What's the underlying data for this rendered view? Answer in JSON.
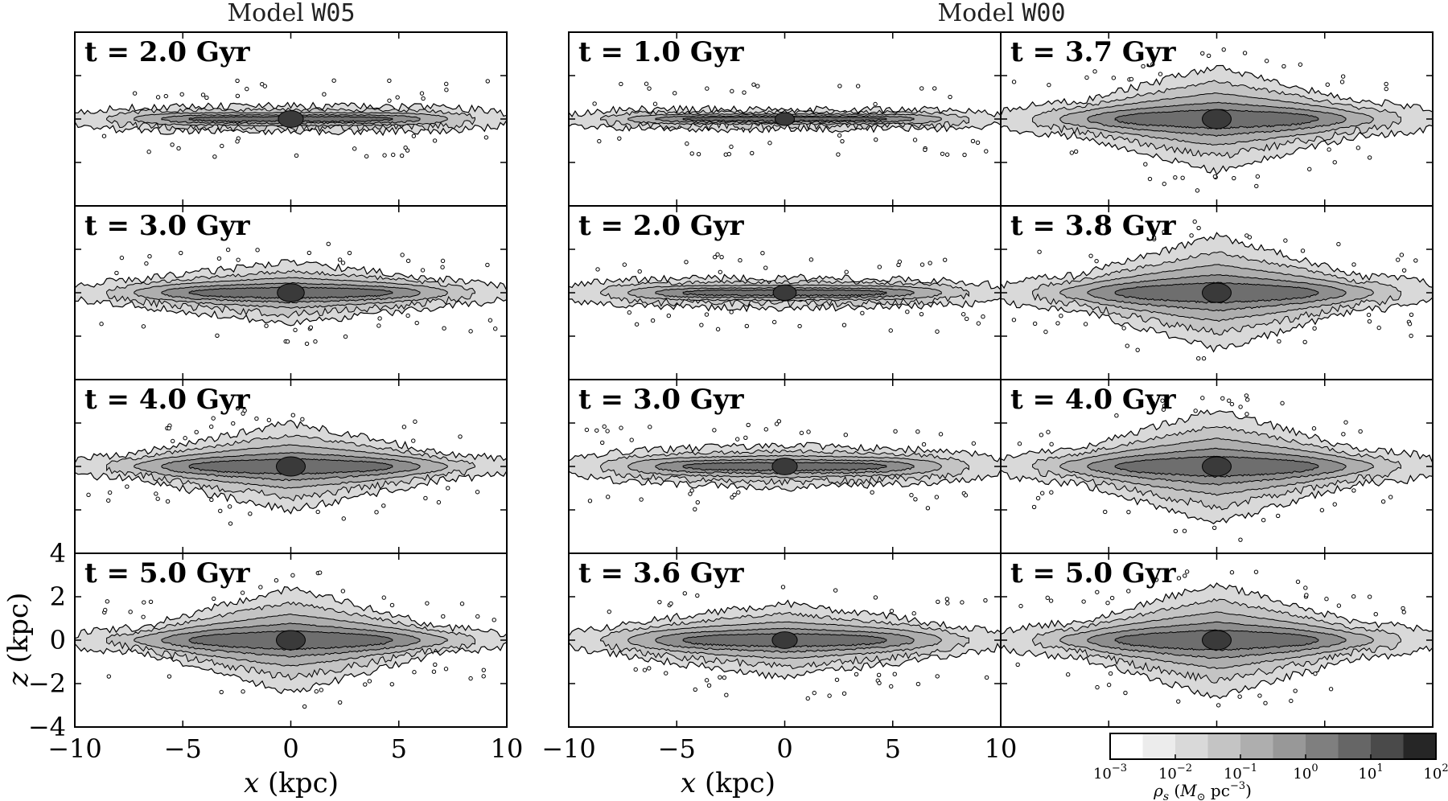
{
  "chart_data": {
    "type": "contour",
    "title_left": {
      "prefix": "Model ",
      "code": "W05"
    },
    "title_right": {
      "prefix": "Model ",
      "code": "W00"
    },
    "xlabel": {
      "var": "x",
      "unit": " (kpc)"
    },
    "ylabel": {
      "var": "z",
      "unit": " (kpc)"
    },
    "xlim": [
      -10,
      10
    ],
    "ylim": [
      -4,
      4
    ],
    "x_ticks": [
      "−10",
      "−5",
      "0",
      "5",
      "10"
    ],
    "y_ticks": [
      "4",
      "2",
      "0",
      "−2",
      "−4"
    ],
    "panels": [
      {
        "model": "W05",
        "column": 0,
        "row": 0,
        "time": "2.0",
        "label": "t = 2.0 Gyr",
        "disk_halfwidth": 9.8,
        "disk_thickness": 0.55,
        "bulge_height": 0.05,
        "bar_halflength": 4.0,
        "core_density": 1.3
      },
      {
        "model": "W05",
        "column": 0,
        "row": 1,
        "time": "3.0",
        "label": "t = 3.0 Gyr",
        "disk_halfwidth": 9.8,
        "disk_thickness": 0.6,
        "bulge_height": 0.8,
        "bar_halflength": 4.5,
        "core_density": 1.4
      },
      {
        "model": "W05",
        "column": 0,
        "row": 2,
        "time": "4.0",
        "label": "t = 4.0 Gyr",
        "disk_halfwidth": 9.8,
        "disk_thickness": 0.6,
        "bulge_height": 1.4,
        "bar_halflength": 4.2,
        "core_density": 1.5
      },
      {
        "model": "W05",
        "column": 0,
        "row": 3,
        "time": "5.0",
        "label": "t = 5.0 Gyr",
        "disk_halfwidth": 9.8,
        "disk_thickness": 0.6,
        "bulge_height": 1.8,
        "bar_halflength": 4.0,
        "core_density": 1.5
      },
      {
        "model": "W00",
        "column": 1,
        "row": 0,
        "time": "1.0",
        "label": "t = 1.0 Gyr",
        "disk_halfwidth": 9.8,
        "disk_thickness": 0.45,
        "bulge_height": 0.0,
        "bar_halflength": 6.0,
        "core_density": 1.0
      },
      {
        "model": "W00",
        "column": 1,
        "row": 1,
        "time": "2.0",
        "label": "t = 2.0 Gyr",
        "disk_halfwidth": 9.8,
        "disk_thickness": 0.6,
        "bulge_height": 0.1,
        "bar_halflength": 5.5,
        "core_density": 1.2
      },
      {
        "model": "W00",
        "column": 1,
        "row": 2,
        "time": "3.0",
        "label": "t = 3.0 Gyr",
        "disk_halfwidth": 9.8,
        "disk_thickness": 0.7,
        "bulge_height": 0.3,
        "bar_halflength": 5.5,
        "core_density": 1.3
      },
      {
        "model": "W00",
        "column": 1,
        "row": 3,
        "time": "3.6",
        "label": "t = 3.6 Gyr",
        "disk_halfwidth": 9.8,
        "disk_thickness": 0.7,
        "bulge_height": 1.0,
        "bar_halflength": 5.0,
        "core_density": 1.3
      },
      {
        "model": "W00",
        "column": 2,
        "row": 0,
        "time": "3.7",
        "label": "t = 3.7 Gyr",
        "disk_halfwidth": 9.8,
        "disk_thickness": 0.8,
        "bulge_height": 1.6,
        "bar_halflength": 3.5,
        "core_density": 1.5
      },
      {
        "model": "W00",
        "column": 2,
        "row": 1,
        "time": "3.8",
        "label": "t = 3.8 Gyr",
        "disk_halfwidth": 9.8,
        "disk_thickness": 0.8,
        "bulge_height": 1.8,
        "bar_halflength": 3.5,
        "core_density": 1.5
      },
      {
        "model": "W00",
        "column": 2,
        "row": 2,
        "time": "4.0",
        "label": "t = 4.0 Gyr",
        "disk_halfwidth": 9.8,
        "disk_thickness": 0.8,
        "bulge_height": 1.8,
        "bar_halflength": 3.5,
        "core_density": 1.5
      },
      {
        "model": "W00",
        "column": 2,
        "row": 3,
        "time": "5.0",
        "label": "t = 5.0 Gyr",
        "disk_halfwidth": 9.8,
        "disk_thickness": 0.8,
        "bulge_height": 1.8,
        "bar_halflength": 3.5,
        "core_density": 1.5
      }
    ],
    "colorbar": {
      "label": "ρs (M⊙ pc⁻³)",
      "label_parts": {
        "rho": "ρ",
        "sub": "s",
        "open": " (",
        "M": "M",
        "sun": "⊙",
        "unit": " pc",
        "exp": "−3",
        "close": ")"
      },
      "log_min": -3,
      "log_max": 2,
      "levels_per_decade": 2,
      "tick_base": "10",
      "tick_exponents": [
        "−3",
        "−2",
        "−1",
        "0",
        "1",
        "2"
      ],
      "colors": [
        "#ffffff",
        "#ececec",
        "#d9d9d9",
        "#c4c4c4",
        "#aeaeae",
        "#989898",
        "#7f7f7f",
        "#666666",
        "#4a4a4a",
        "#262626"
      ]
    }
  }
}
